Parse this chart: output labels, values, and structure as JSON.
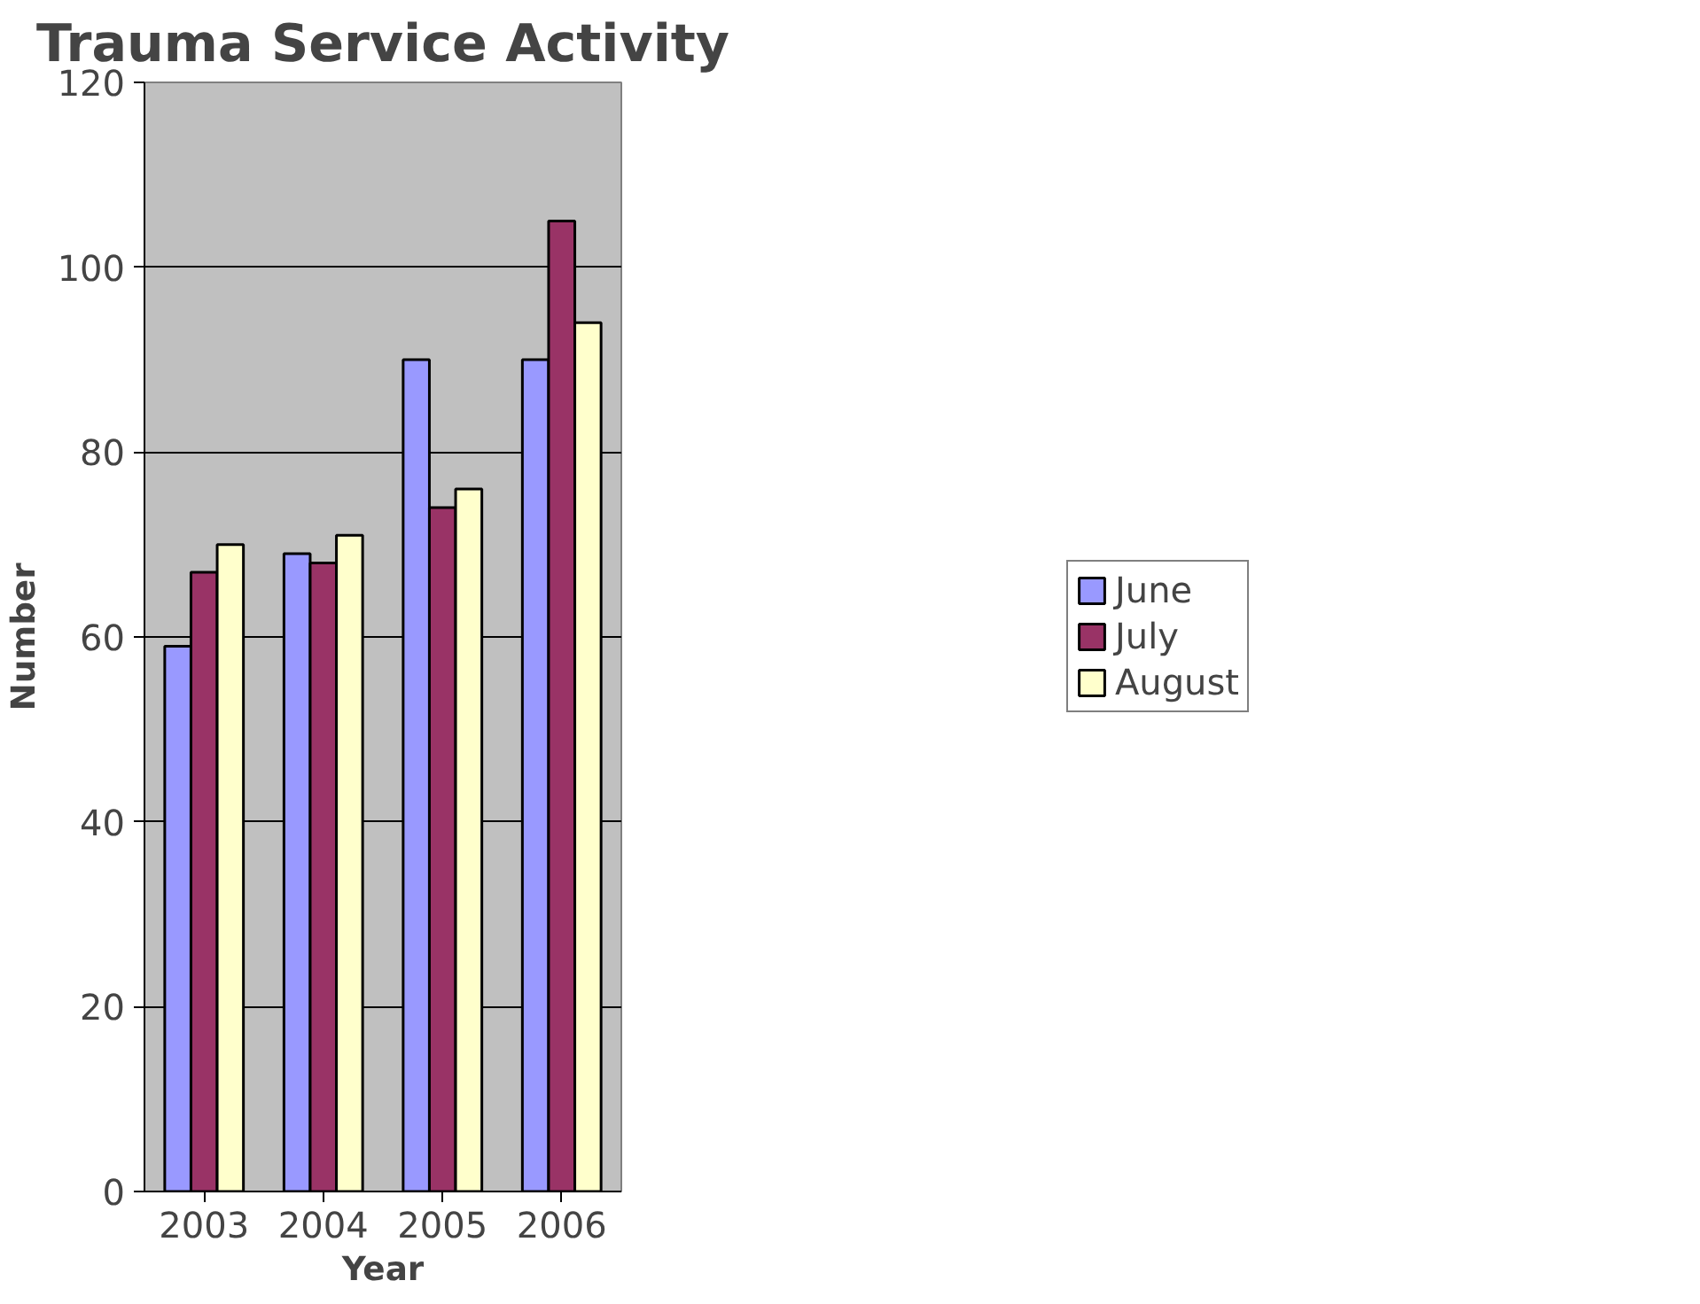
{
  "chart_data": {
    "type": "bar",
    "title": "Trauma Service Activity",
    "xlabel": "Year",
    "ylabel": "Number",
    "categories": [
      "2003",
      "2004",
      "2005",
      "2006"
    ],
    "series": [
      {
        "name": "June",
        "color": "#9999ff",
        "values": [
          59,
          69,
          90,
          90
        ]
      },
      {
        "name": "July",
        "color": "#993366",
        "values": [
          67,
          68,
          74,
          105
        ]
      },
      {
        "name": "August",
        "color": "#ffffcc",
        "values": [
          70,
          71,
          76,
          94
        ]
      }
    ],
    "ylim": [
      0,
      120
    ],
    "yticks": [
      0,
      20,
      40,
      60,
      80,
      100,
      120
    ],
    "grid": "y",
    "legend": "right"
  }
}
